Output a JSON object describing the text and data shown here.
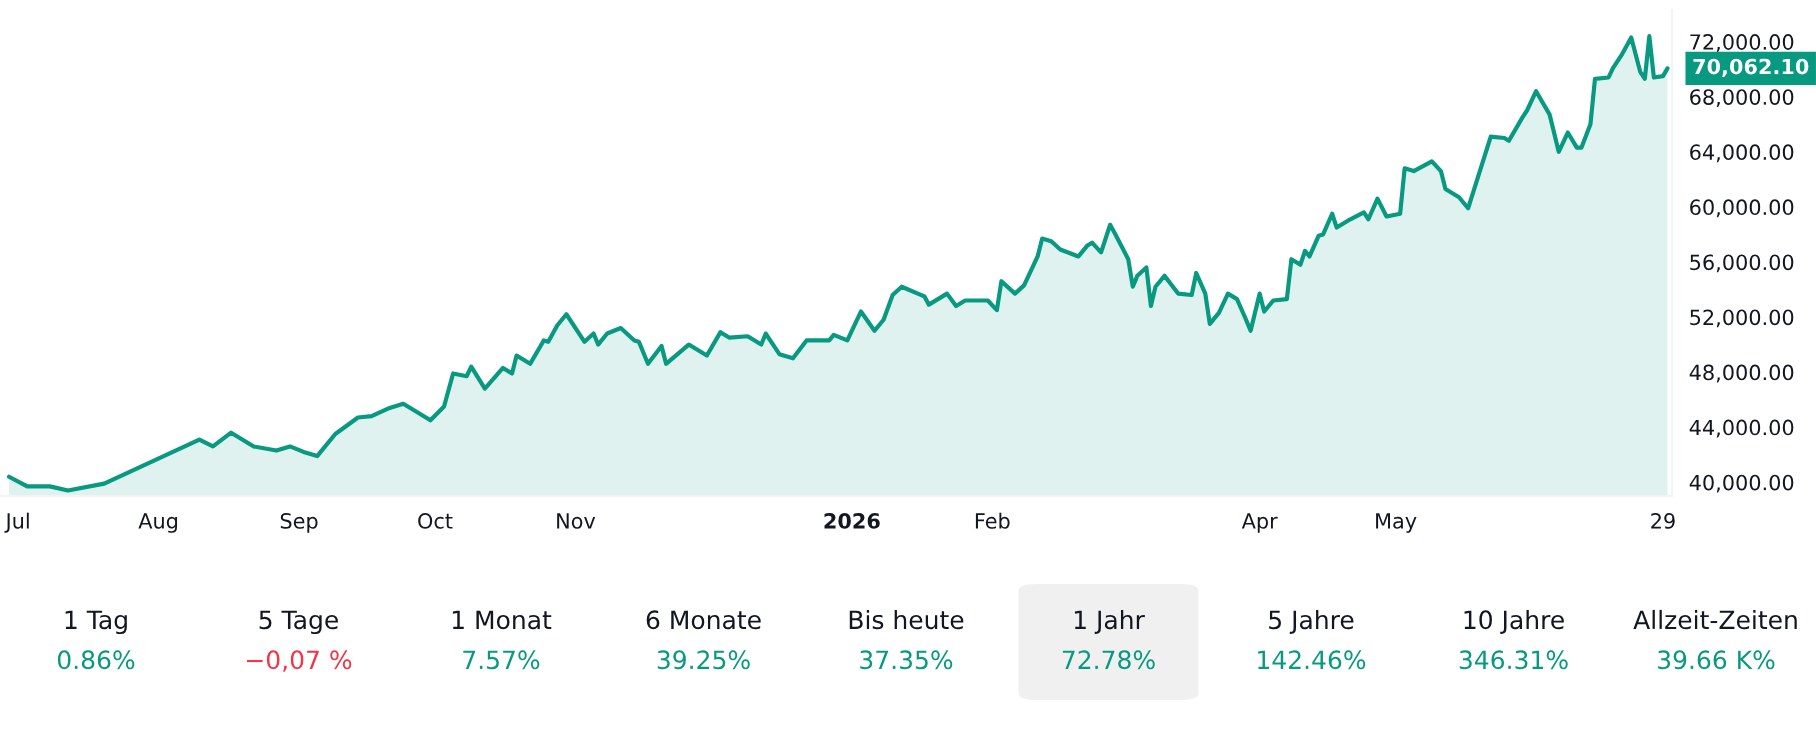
{
  "chart_data": {
    "type": "area",
    "series": [
      {
        "color": "#089981",
        "x": [
          "2025-06-29",
          "2025-07-03",
          "2025-07-08",
          "2025-07-12",
          "2025-07-20",
          "2025-08-10",
          "2025-08-13",
          "2025-08-17",
          "2025-08-22",
          "2025-08-27",
          "2025-08-30",
          "2025-09-02",
          "2025-09-05",
          "2025-09-09",
          "2025-09-14",
          "2025-09-17",
          "2025-09-21",
          "2025-09-24",
          "2025-09-30",
          "2025-10-03",
          "2025-10-05",
          "2025-10-08",
          "2025-10-09",
          "2025-10-12",
          "2025-10-16",
          "2025-10-18",
          "2025-10-19",
          "2025-10-22",
          "2025-10-25",
          "2025-10-26",
          "2025-10-28",
          "2025-10-30",
          "2025-11-03",
          "2025-11-05",
          "2025-11-06",
          "2025-11-08",
          "2025-11-11",
          "2025-11-14",
          "2025-11-15",
          "2025-11-17",
          "2025-11-20",
          "2025-11-21",
          "2025-11-26",
          "2025-11-30",
          "2025-12-03",
          "2025-12-05",
          "2025-12-09",
          "2025-12-12",
          "2025-12-13",
          "2025-12-16",
          "2025-12-19",
          "2025-12-22",
          "2025-12-27",
          "2025-12-28",
          "2025-12-31",
          "2026-01-02",
          "2026-01-03",
          "2026-01-06",
          "2026-01-08",
          "2026-01-10",
          "2026-01-12",
          "2026-01-17",
          "2026-01-18",
          "2026-01-22",
          "2026-01-24",
          "2026-01-26",
          "2026-01-31",
          "2026-02-02",
          "2026-02-03",
          "2026-02-06",
          "2026-02-08",
          "2026-02-11",
          "2026-02-12",
          "2026-02-14",
          "2026-02-16",
          "2026-02-20",
          "2026-02-22",
          "2026-02-23",
          "2026-02-25",
          "2026-02-27",
          "2026-02-28",
          "2026-03-03",
          "2026-03-04",
          "2026-03-05",
          "2026-03-07",
          "2026-03-08",
          "2026-03-09",
          "2026-03-11",
          "2026-03-14",
          "2026-03-17",
          "2026-03-18",
          "2026-03-20",
          "2026-03-21",
          "2026-03-23",
          "2026-03-25",
          "2026-03-27",
          "2026-03-29",
          "2026-03-30",
          "2026-04-01",
          "2026-04-02",
          "2026-04-04",
          "2026-04-07",
          "2026-04-08",
          "2026-04-10",
          "2026-04-11",
          "2026-04-12",
          "2026-04-14",
          "2026-04-15",
          "2026-04-17",
          "2026-04-18",
          "2026-04-21",
          "2026-04-24",
          "2026-04-25",
          "2026-04-27",
          "2026-04-29",
          "2026-05-02",
          "2026-05-03",
          "2026-05-05",
          "2026-05-09",
          "2026-05-11",
          "2026-05-12",
          "2026-05-15",
          "2026-05-17",
          "2026-05-22",
          "2026-05-25",
          "2026-05-26",
          "2026-05-29",
          "2026-05-30",
          "2026-06-01",
          "2026-06-04",
          "2026-06-06",
          "2026-06-08",
          "2026-06-10",
          "2026-06-11",
          "2026-06-13",
          "2026-06-14",
          "2026-06-17",
          "2026-06-18",
          "2026-06-20",
          "2026-06-22",
          "2026-06-24",
          "2026-06-25",
          "2026-06-26",
          "2026-06-27",
          "2026-06-29",
          "2026-06-30"
        ],
        "values": [
          40400,
          39700,
          39700,
          39400,
          39900,
          43100,
          42600,
          43600,
          42600,
          42300,
          42600,
          42200,
          41900,
          43500,
          44700,
          44800,
          45400,
          45700,
          44500,
          45500,
          47900,
          47700,
          48400,
          46800,
          48300,
          47900,
          49200,
          48600,
          50300,
          50200,
          51400,
          52200,
          50200,
          50800,
          50000,
          50800,
          51200,
          50300,
          50200,
          48600,
          49900,
          48600,
          50000,
          49200,
          50900,
          50500,
          50600,
          50000,
          50800,
          49300,
          49000,
          50300,
          50300,
          50700,
          50300,
          51700,
          52400,
          51000,
          51800,
          53600,
          54200,
          53500,
          52900,
          53700,
          52800,
          53200,
          53200,
          52500,
          54600,
          53700,
          54300,
          56400,
          57700,
          57500,
          56900,
          56400,
          57200,
          57400,
          56700,
          58700,
          58100,
          56200,
          54200,
          55000,
          55600,
          52800,
          54200,
          55000,
          53700,
          53600,
          55200,
          53700,
          51500,
          52300,
          53700,
          53300,
          51800,
          51000,
          53700,
          52400,
          53200,
          53300,
          56200,
          55800,
          56800,
          56400,
          57900,
          58000,
          59500,
          58500,
          59100,
          59600,
          59100,
          60600,
          59300,
          59500,
          62800,
          62600,
          63300,
          62600,
          61300,
          60700,
          59900,
          65100,
          65000,
          64800,
          66500,
          67000,
          68400,
          66700,
          64000,
          65400,
          64300,
          64300,
          66000,
          69300,
          69400,
          70100,
          71100,
          72300,
          69800,
          69300,
          72400,
          69400,
          69500,
          70062.1
        ]
      }
    ],
    "xlim": [
      "2025-06-27",
      "2026-07-01"
    ],
    "xticks": [
      {
        "value": "2025-07-01",
        "label": "Jul"
      },
      {
        "value": "2025-08-01",
        "label": "Aug"
      },
      {
        "value": "2025-09-01",
        "label": "Sep"
      },
      {
        "value": "2025-10-01",
        "label": "Oct"
      },
      {
        "value": "2025-11-01",
        "label": "Nov"
      },
      {
        "value": "2026-01-01",
        "label": "2026"
      },
      {
        "value": "2026-02-01",
        "label": "Feb"
      },
      {
        "value": "2026-04-01",
        "label": "Apr"
      },
      {
        "value": "2026-05-01",
        "label": "May"
      },
      {
        "value": "2026-06-29",
        "label": "29"
      }
    ],
    "ylim": [
      39000,
      74300
    ],
    "yticks": [
      {
        "value": 40000,
        "label": "40,000.00"
      },
      {
        "value": 44000,
        "label": "44,000.00"
      },
      {
        "value": 48000,
        "label": "48,000.00"
      },
      {
        "value": 52000,
        "label": "52,000.00"
      },
      {
        "value": 56000,
        "label": "56,000.00"
      },
      {
        "value": 60000,
        "label": "60,000.00"
      },
      {
        "value": 64000,
        "label": "64,000.00"
      },
      {
        "value": 68000,
        "label": "68,000.00"
      },
      {
        "value": 72000,
        "label": "72,000.00"
      }
    ],
    "grid": false,
    "annotations": [
      {
        "text": "70,062.10",
        "x": "2026-06-30",
        "y": 70062.1
      },
      "1 Tag",
      "0.86%",
      "5 Tage",
      "−0,07 %",
      "1 Monat",
      "7.57%",
      "6 Monate",
      "39.25%",
      "Bis heute",
      "37.35%",
      "1 Jahr",
      "72.78%",
      "5 Jahre",
      "142.46%",
      "10 Jahre",
      "346.31%",
      "Allzeit-Zeiten",
      "39.66 K%"
    ]
  }
}
